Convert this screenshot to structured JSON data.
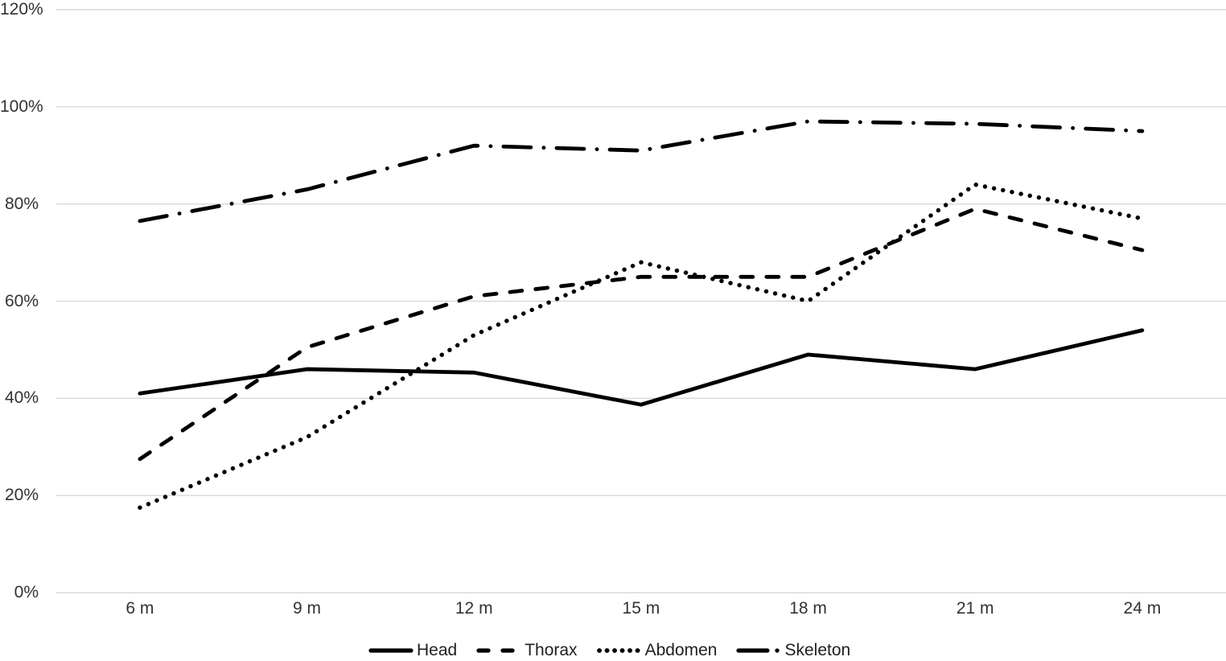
{
  "chart_data": {
    "type": "line",
    "title": "",
    "xlabel": "",
    "ylabel": "",
    "grid": true,
    "legend_position": "bottom-center",
    "line_color": "#000000",
    "gridline_color": "#d9d9d9",
    "axis_label_color": "#323232",
    "background_color": "#ffffff",
    "categories": [
      "6 m",
      "9 m",
      "12 m",
      "15 m",
      "18 m",
      "21 m",
      "24 m"
    ],
    "y_axis": {
      "min": 0,
      "max": 120,
      "step": 20,
      "tick_labels": [
        "0%",
        "20%",
        "40%",
        "60%",
        "80%",
        "100%",
        "120%"
      ],
      "tick_values": [
        0,
        20,
        40,
        60,
        80,
        100,
        120
      ]
    },
    "series": [
      {
        "name": "Head",
        "style": "solid",
        "values": [
          41,
          46,
          45.3,
          38.7,
          49,
          46,
          54
        ]
      },
      {
        "name": "Thorax",
        "style": "dashed",
        "values": [
          27.5,
          50.5,
          61,
          65,
          65,
          79,
          70.5
        ]
      },
      {
        "name": "Abdomen",
        "style": "dotted",
        "values": [
          17.5,
          32,
          53,
          68,
          60,
          84,
          77
        ]
      },
      {
        "name": "Skeleton",
        "style": "dashdot",
        "values": [
          76.5,
          83,
          92,
          91,
          97,
          96.5,
          95
        ]
      }
    ]
  }
}
